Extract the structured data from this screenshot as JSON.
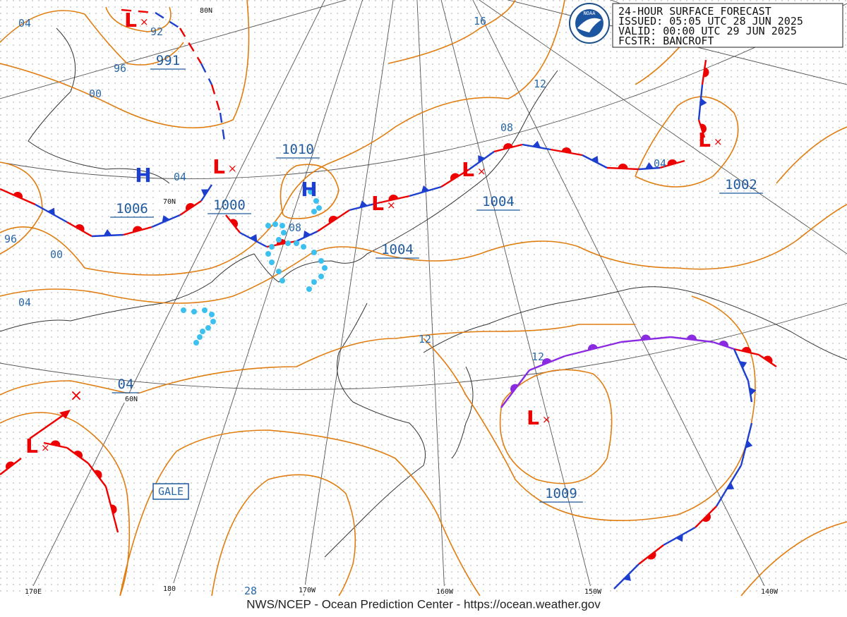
{
  "header": {
    "lines": [
      "24-HOUR SURFACE FORECAST",
      "ISSUED: 05:05 UTC 28 JUN 2025",
      "VALID:  00:00 UTC 29 JUN 2025",
      "FCSTR:  BANCROFT"
    ]
  },
  "logo": "NOAA",
  "footer": "NWS/NCEP - Ocean Prediction Center - https://ocean.weather.gov",
  "graticule_labels": [
    "80N",
    "70N",
    "60N",
    "170E",
    "180",
    "170W",
    "160W",
    "150W",
    "140W"
  ],
  "isobar_labels": [
    "04",
    "92",
    "96",
    "00",
    "991",
    "16",
    "12",
    "08",
    "04",
    "1002",
    "1010",
    "04",
    "1006",
    "1000",
    "08",
    "1004",
    "1004",
    "96",
    "00",
    "04",
    "12",
    "12",
    "04",
    "1009",
    "28"
  ],
  "warning": "GALE",
  "pressure_centers": [
    "H",
    "H",
    "L",
    "L",
    "L",
    "L",
    "L",
    "L",
    "L"
  ]
}
